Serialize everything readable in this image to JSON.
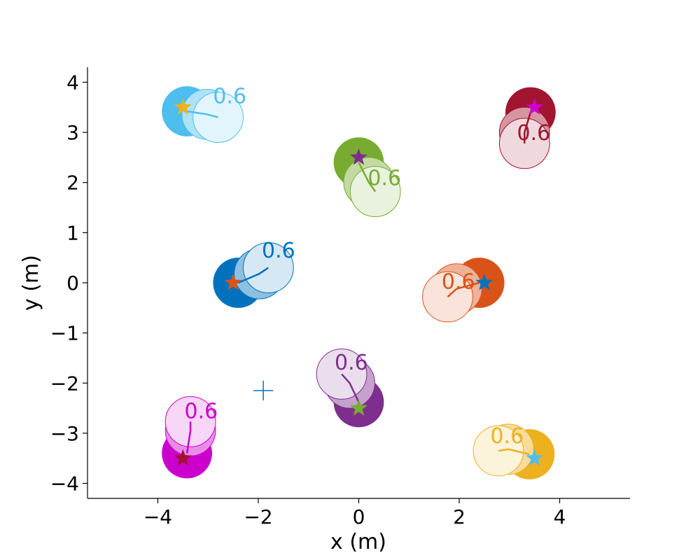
{
  "chart_data": {
    "type": "scatter",
    "title": "",
    "xlabel": "x (m)",
    "ylabel": "y (m)",
    "xlim": [
      -5.4,
      5.4
    ],
    "ylim": [
      -4.3,
      4.3
    ],
    "xticks": [
      -4,
      -2,
      0,
      2,
      4
    ],
    "yticks": [
      -4,
      -3,
      -2,
      -1,
      0,
      1,
      2,
      3,
      4
    ],
    "tick_labels": {
      "x": [
        "−4",
        "−2",
        "0",
        "2",
        "4"
      ],
      "y": [
        "−4",
        "−3",
        "−2",
        "−1",
        "0",
        "1",
        "2",
        "3",
        "4"
      ]
    },
    "agent_radius": 0.5,
    "grid": false,
    "legend": "none",
    "agents": [
      {
        "color": "#4DBEEE",
        "positions": [
          [
            -3.42,
            3.42
          ],
          [
            -3.02,
            3.36
          ],
          [
            -2.8,
            3.3
          ]
        ],
        "goal": [
          -3.5,
          3.5
        ],
        "goal_color": "#EDB120",
        "time_label": "0.6",
        "time_label_pos": [
          -2.9,
          3.58
        ]
      },
      {
        "color": "#A2142F",
        "positions": [
          [
            3.42,
            3.4
          ],
          [
            3.3,
            3.0
          ],
          [
            3.3,
            2.78
          ]
        ],
        "goal": [
          3.5,
          3.5
        ],
        "goal_color": "#CC00CC",
        "time_label": "0.6",
        "time_label_pos": [
          3.15,
          2.85
        ]
      },
      {
        "color": "#77AC30",
        "positions": [
          [
            0.0,
            2.4
          ],
          [
            0.2,
            2.0
          ],
          [
            0.33,
            1.82
          ]
        ],
        "goal": [
          0.0,
          2.5
        ],
        "goal_color": "#7E2F8E",
        "time_label": "0.6",
        "time_label_pos": [
          0.18,
          1.95
        ]
      },
      {
        "color": "#0072BD",
        "positions": [
          [
            -2.4,
            0.0
          ],
          [
            -1.98,
            0.18
          ],
          [
            -1.8,
            0.3
          ]
        ],
        "goal": [
          -2.5,
          0.0
        ],
        "goal_color": "#D95319",
        "time_label": "0.6",
        "time_label_pos": [
          -1.93,
          0.5
        ]
      },
      {
        "color": "#D95319",
        "positions": [
          [
            2.4,
            0.0
          ],
          [
            1.95,
            -0.12
          ],
          [
            1.77,
            -0.28
          ]
        ],
        "goal": [
          2.5,
          0.0
        ],
        "goal_color": "#0072BD",
        "time_label": "0.6",
        "time_label_pos": [
          1.65,
          -0.12
        ]
      },
      {
        "color": "#7E2F8E",
        "positions": [
          [
            0.0,
            -2.38
          ],
          [
            -0.18,
            -2.0
          ],
          [
            -0.34,
            -1.82
          ]
        ],
        "goal": [
          0.0,
          -2.5
        ],
        "goal_color": "#77AC30",
        "time_label": "0.6",
        "time_label_pos": [
          -0.48,
          -1.73
        ]
      },
      {
        "color": "#CC00CC",
        "positions": [
          [
            -3.42,
            -3.4
          ],
          [
            -3.35,
            -2.95
          ],
          [
            -3.35,
            -2.77
          ]
        ],
        "goal": [
          -3.5,
          -3.5
        ],
        "goal_color": "#A2142F",
        "time_label": "0.6",
        "time_label_pos": [
          -3.47,
          -2.7
        ]
      },
      {
        "color": "#EDB120",
        "positions": [
          [
            3.4,
            -3.42
          ],
          [
            2.98,
            -3.32
          ],
          [
            2.78,
            -3.35
          ]
        ],
        "goal": [
          3.5,
          -3.5
        ],
        "goal_color": "#4DBEEE",
        "time_label": "0.6",
        "time_label_pos": [
          2.62,
          -3.2
        ]
      }
    ],
    "markers": [
      {
        "type": "plus",
        "position": [
          -1.9,
          -2.15
        ],
        "color": "#0072BD"
      }
    ]
  }
}
